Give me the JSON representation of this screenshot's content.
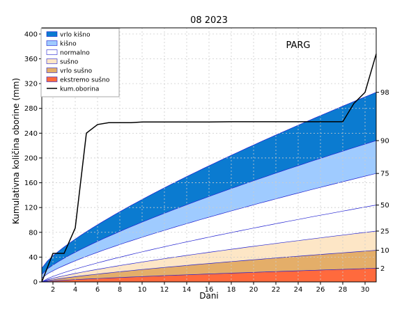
{
  "chart_data": {
    "type": "area",
    "title": "08 2023",
    "station": "PARG",
    "xlabel": "Dani",
    "ylabel": "Kumulativna količina oborine (mm)",
    "xlim": [
      1,
      31
    ],
    "ylim": [
      0,
      410
    ],
    "x_ticks": [
      2,
      4,
      6,
      8,
      10,
      12,
      14,
      16,
      18,
      20,
      22,
      24,
      26,
      28,
      30
    ],
    "y_ticks": [
      0,
      40,
      80,
      120,
      160,
      200,
      240,
      280,
      320,
      360,
      400
    ],
    "grid": true,
    "legend_position": "top-left",
    "percentiles": [
      {
        "label": "2",
        "end_value": 22
      },
      {
        "label": "10",
        "end_value": 51
      },
      {
        "label": "25",
        "end_value": 82
      },
      {
        "label": "50",
        "end_value": 124
      },
      {
        "label": "75",
        "end_value": 175
      },
      {
        "label": "90",
        "end_value": 228
      },
      {
        "label": "98",
        "end_value": 306
      }
    ],
    "bands": [
      {
        "name": "vrlo kišno",
        "color": "#0b7bd0",
        "lower": 90,
        "upper": 98
      },
      {
        "name": "kišno",
        "color": "#9fcbff",
        "lower": 75,
        "upper": 90
      },
      {
        "name": "normalno",
        "color": "#ffffff",
        "lower": 25,
        "upper": 75
      },
      {
        "name": "sušno",
        "color": "#fde6c6",
        "lower": 10,
        "upper": 25
      },
      {
        "name": "vrlo sušno",
        "color": "#e4ae69",
        "lower": 2,
        "upper": 10
      },
      {
        "name": "ekstremo sušno",
        "color": "#ff6a3d",
        "lower": 0,
        "upper": 2
      }
    ],
    "series": [
      {
        "name": "kum.oborina",
        "color": "#000000",
        "x": [
          1,
          2,
          3,
          4,
          5,
          6,
          7,
          8,
          9,
          10,
          12,
          14,
          16,
          18,
          20,
          22,
          24,
          26,
          28,
          29,
          30,
          31
        ],
        "values": [
          0,
          46,
          46,
          87,
          240,
          254,
          257,
          257,
          257,
          258,
          258,
          258,
          258,
          258.5,
          258.5,
          258.5,
          258.5,
          258.5,
          258.5,
          288,
          306,
          368
        ]
      }
    ]
  }
}
